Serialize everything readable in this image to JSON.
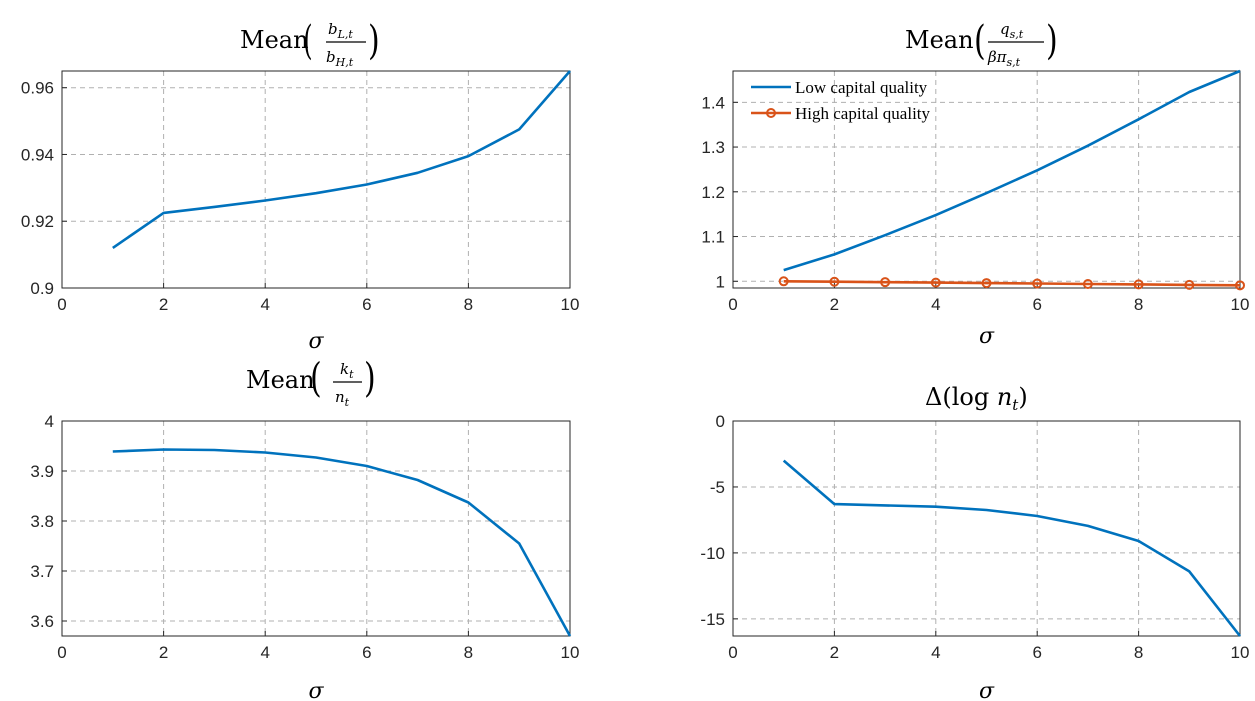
{
  "chart_data": [
    {
      "type": "line",
      "title": "Mean(b_{L,t}/b_{H,t})",
      "xlabel": "σ",
      "ylabel": "",
      "xlim": [
        0,
        10
      ],
      "ylim": [
        0.9,
        0.965
      ],
      "xticks": [
        0,
        2,
        4,
        6,
        8,
        10
      ],
      "yticks": [
        0.9,
        0.92,
        0.94,
        0.96
      ],
      "ytick_labels": [
        "0.9",
        "0.92",
        "0.94",
        "0.96"
      ],
      "grid": true,
      "series": [
        {
          "x": [
            1,
            2,
            3,
            4,
            5,
            6,
            7,
            8,
            9,
            10
          ],
          "y": [
            0.912,
            0.9225,
            0.9243,
            0.9262,
            0.9284,
            0.931,
            0.9345,
            0.9395,
            0.9475,
            0.965
          ],
          "color": "#0072BD",
          "marker": "none"
        }
      ]
    },
    {
      "type": "line",
      "title": "Mean(q_{s,t}/(βπ_{s,t}))",
      "xlabel": "σ",
      "ylabel": "",
      "xlim": [
        0,
        10
      ],
      "ylim": [
        0.985,
        1.47
      ],
      "xticks": [
        0,
        2,
        4,
        6,
        8,
        10
      ],
      "yticks": [
        1,
        1.1,
        1.2,
        1.3,
        1.4
      ],
      "ytick_labels": [
        "1",
        "1.1",
        "1.2",
        "1.3",
        "1.4"
      ],
      "grid": true,
      "legend_position": "top-left",
      "series": [
        {
          "name": "Low capital quality",
          "x": [
            1,
            2,
            3,
            4,
            5,
            6,
            7,
            8,
            9,
            10
          ],
          "y": [
            1.025,
            1.06,
            1.103,
            1.148,
            1.197,
            1.248,
            1.303,
            1.362,
            1.423,
            1.47
          ],
          "color": "#0072BD",
          "marker": "none"
        },
        {
          "name": "High capital quality",
          "x": [
            1,
            2,
            3,
            4,
            5,
            6,
            7,
            8,
            9,
            10
          ],
          "y": [
            1.0,
            0.999,
            0.998,
            0.997,
            0.996,
            0.995,
            0.994,
            0.993,
            0.992,
            0.991
          ],
          "color": "#D95319",
          "marker": "circle"
        }
      ]
    },
    {
      "type": "line",
      "title": "Mean(k_t/n_t)",
      "xlabel": "σ",
      "ylabel": "",
      "xlim": [
        0,
        10
      ],
      "ylim": [
        3.57,
        4.0
      ],
      "xticks": [
        0,
        2,
        4,
        6,
        8,
        10
      ],
      "yticks": [
        3.6,
        3.7,
        3.8,
        3.9,
        4
      ],
      "ytick_labels": [
        "3.6",
        "3.7",
        "3.8",
        "3.9",
        "4"
      ],
      "grid": true,
      "series": [
        {
          "x": [
            1,
            2,
            3,
            4,
            5,
            6,
            7,
            8,
            9,
            10
          ],
          "y": [
            3.939,
            3.943,
            3.942,
            3.937,
            3.927,
            3.91,
            3.882,
            3.837,
            3.755,
            3.57
          ],
          "color": "#0072BD",
          "marker": "none"
        }
      ]
    },
    {
      "type": "line",
      "title": "Δ(log n_t)",
      "xlabel": "σ",
      "ylabel": "",
      "xlim": [
        0,
        10
      ],
      "ylim": [
        -16.3,
        0
      ],
      "xticks": [
        0,
        2,
        4,
        6,
        8,
        10
      ],
      "yticks": [
        -15,
        -10,
        -5,
        0
      ],
      "ytick_labels": [
        "-15",
        "-10",
        "-5",
        "0"
      ],
      "grid": true,
      "series": [
        {
          "x": [
            1,
            2,
            3,
            4,
            5,
            6,
            7,
            8,
            9,
            10
          ],
          "y": [
            -3.0,
            -6.3,
            -6.4,
            -6.5,
            -6.75,
            -7.2,
            -7.95,
            -9.1,
            -11.4,
            -16.3
          ],
          "color": "#0072BD",
          "marker": "none"
        }
      ]
    }
  ]
}
